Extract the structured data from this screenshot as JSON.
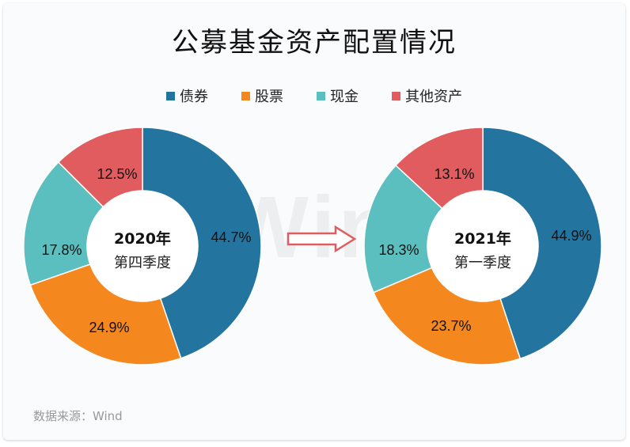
{
  "title": "公募基金资产配置情况",
  "legend": [
    {
      "label": "债券",
      "color": "#23759f"
    },
    {
      "label": "股票",
      "color": "#f4881e"
    },
    {
      "label": "现金",
      "color": "#5cbfbf"
    },
    {
      "label": "其他资产",
      "color": "#e05c5f"
    }
  ],
  "watermark": "Wind",
  "left_chart": {
    "year": "2020年",
    "quarter": "第四季度",
    "labels": [
      "44.7%",
      "24.9%",
      "17.8%",
      "12.5%"
    ]
  },
  "right_chart": {
    "year": "2021年",
    "quarter": "第一季度",
    "labels": [
      "44.9%",
      "23.7%",
      "18.3%",
      "13.1%"
    ]
  },
  "source": "数据来源：Wind",
  "chart_data": [
    {
      "type": "pie",
      "variant": "donut",
      "title": "2020年 第四季度",
      "categories": [
        "债券",
        "股票",
        "现金",
        "其他资产"
      ],
      "values": [
        44.7,
        24.9,
        17.8,
        12.5
      ],
      "colors": [
        "#23759f",
        "#f4881e",
        "#5cbfbf",
        "#e05c5f"
      ],
      "unit": "%",
      "legend_position": "top"
    },
    {
      "type": "pie",
      "variant": "donut",
      "title": "2021年 第一季度",
      "categories": [
        "债券",
        "股票",
        "现金",
        "其他资产"
      ],
      "values": [
        44.9,
        23.7,
        18.3,
        13.1
      ],
      "colors": [
        "#23759f",
        "#f4881e",
        "#5cbfbf",
        "#e05c5f"
      ],
      "unit": "%",
      "legend_position": "top"
    }
  ]
}
